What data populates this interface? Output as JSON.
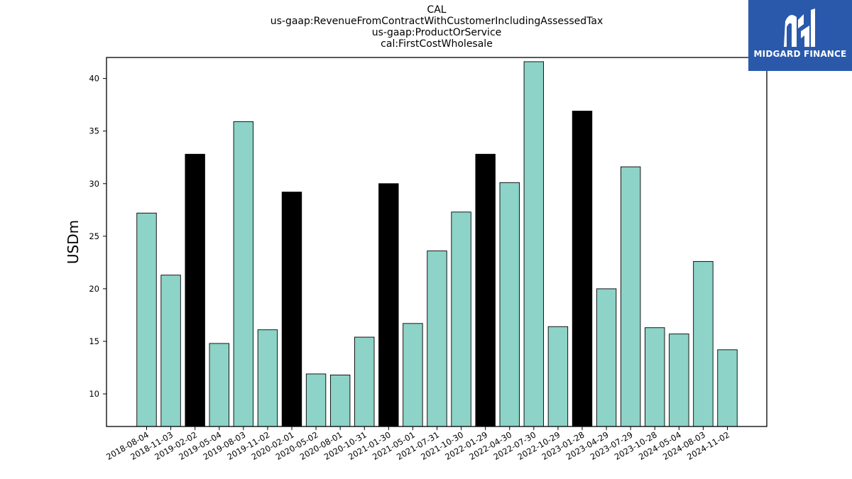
{
  "title_lines": [
    "CAL",
    "us-gaap:RevenueFromContractWithCustomerIncludingAssessedTax",
    "us-gaap:ProductOrService",
    "cal:FirstCostWholesale"
  ],
  "logo": {
    "text": "MIDGARD FINANCE",
    "background": "#2a59ac"
  },
  "chart_data": {
    "type": "bar",
    "title": "CAL\nus-gaap:RevenueFromContractWithCustomerIncludingAssessedTax\nus-gaap:ProductOrService\ncal:FirstCostWholesale",
    "xlabel": "",
    "ylabel": "USDm",
    "ylim": [
      6.9,
      42.0
    ],
    "yticks": [
      10,
      15,
      20,
      25,
      30,
      35,
      40
    ],
    "grid": false,
    "colors": {
      "default": "#8dd3c7",
      "highlight": "#000000",
      "edge": "#000000"
    },
    "categories": [
      "2018-08-04",
      "2018-11-03",
      "2019-02-02",
      "2019-05-04",
      "2019-08-03",
      "2019-11-02",
      "2020-02-01",
      "2020-05-02",
      "2020-08-01",
      "2020-10-31",
      "2021-01-30",
      "2021-05-01",
      "2021-07-31",
      "2021-10-30",
      "2022-01-29",
      "2022-04-30",
      "2022-07-30",
      "2022-10-29",
      "2023-01-28",
      "2023-04-29",
      "2023-07-29",
      "2023-10-28",
      "2024-05-04",
      "2024-08-03",
      "2024-11-02"
    ],
    "values": [
      27.2,
      21.3,
      32.8,
      14.8,
      35.9,
      16.1,
      29.2,
      11.9,
      11.8,
      15.4,
      30.0,
      16.7,
      23.6,
      27.3,
      32.8,
      30.1,
      41.6,
      16.4,
      36.9,
      20.0,
      31.6,
      16.3,
      15.7,
      22.6,
      14.2
    ],
    "highlight": [
      false,
      false,
      true,
      false,
      false,
      false,
      true,
      false,
      false,
      false,
      true,
      false,
      false,
      false,
      true,
      false,
      false,
      false,
      true,
      false,
      false,
      false,
      false,
      false,
      false
    ]
  }
}
